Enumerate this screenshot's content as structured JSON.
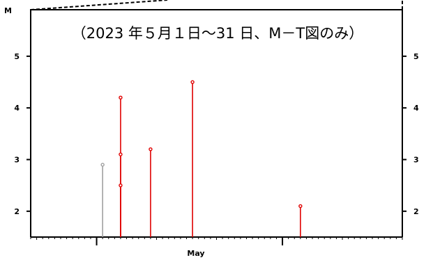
{
  "chart_data": {
    "type": "stem",
    "title": "（2023 年５月１日～31 日、M－T図のみ）",
    "ylabel": "M",
    "xlabel": "",
    "x_month_label": "May",
    "ylim": [
      1.5,
      5.9
    ],
    "xlim": [
      "2023-04-20",
      "2023-06-21"
    ],
    "y_ticks": [
      2,
      3,
      4,
      5
    ],
    "grid": false,
    "series": [
      {
        "color": "#a0a0a0",
        "points": [
          {
            "x": "2023-05-02",
            "y": 2.9
          }
        ]
      },
      {
        "color": "#e00000",
        "points": [
          {
            "x": "2023-05-05",
            "y": 4.2
          },
          {
            "x": "2023-05-05",
            "y": 3.1
          },
          {
            "x": "2023-05-05",
            "y": 2.5
          },
          {
            "x": "2023-05-10",
            "y": 3.2
          },
          {
            "x": "2023-05-17",
            "y": 4.5
          },
          {
            "x": "2023-06-04",
            "y": 2.1
          }
        ]
      }
    ]
  }
}
